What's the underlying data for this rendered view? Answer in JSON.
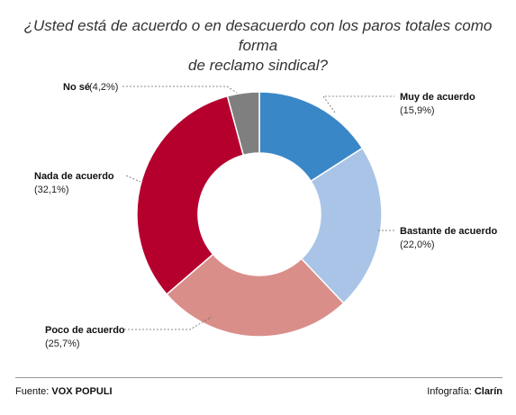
{
  "chart_data": {
    "type": "pie",
    "title_lines": [
      "¿Usted está de acuerdo o en desacuerdo con los paros totales como forma",
      "de reclamo sindical?"
    ],
    "categories": [
      "Muy de acuerdo",
      "Bastante de acuerdo",
      "Poco de acuerdo",
      "Nada de acuerdo",
      "No sé"
    ],
    "values": [
      15.9,
      22.0,
      25.7,
      32.1,
      4.2
    ],
    "value_labels": [
      "(15,9%)",
      "(22,0%)",
      "(25,7%)",
      "(32,1%)",
      "(4,2%)"
    ],
    "no_se_label": "No sé (4,2%)",
    "colors": [
      "#3a87c8",
      "#a9c4e6",
      "#d98e8a",
      "#b5002e",
      "#7f7f7f"
    ],
    "donut": true
  },
  "footer": {
    "source_prefix": "Fuente: ",
    "source_name": "VOX POPULI",
    "credit_prefix": "Infografía: ",
    "credit_name": "Clarín"
  }
}
